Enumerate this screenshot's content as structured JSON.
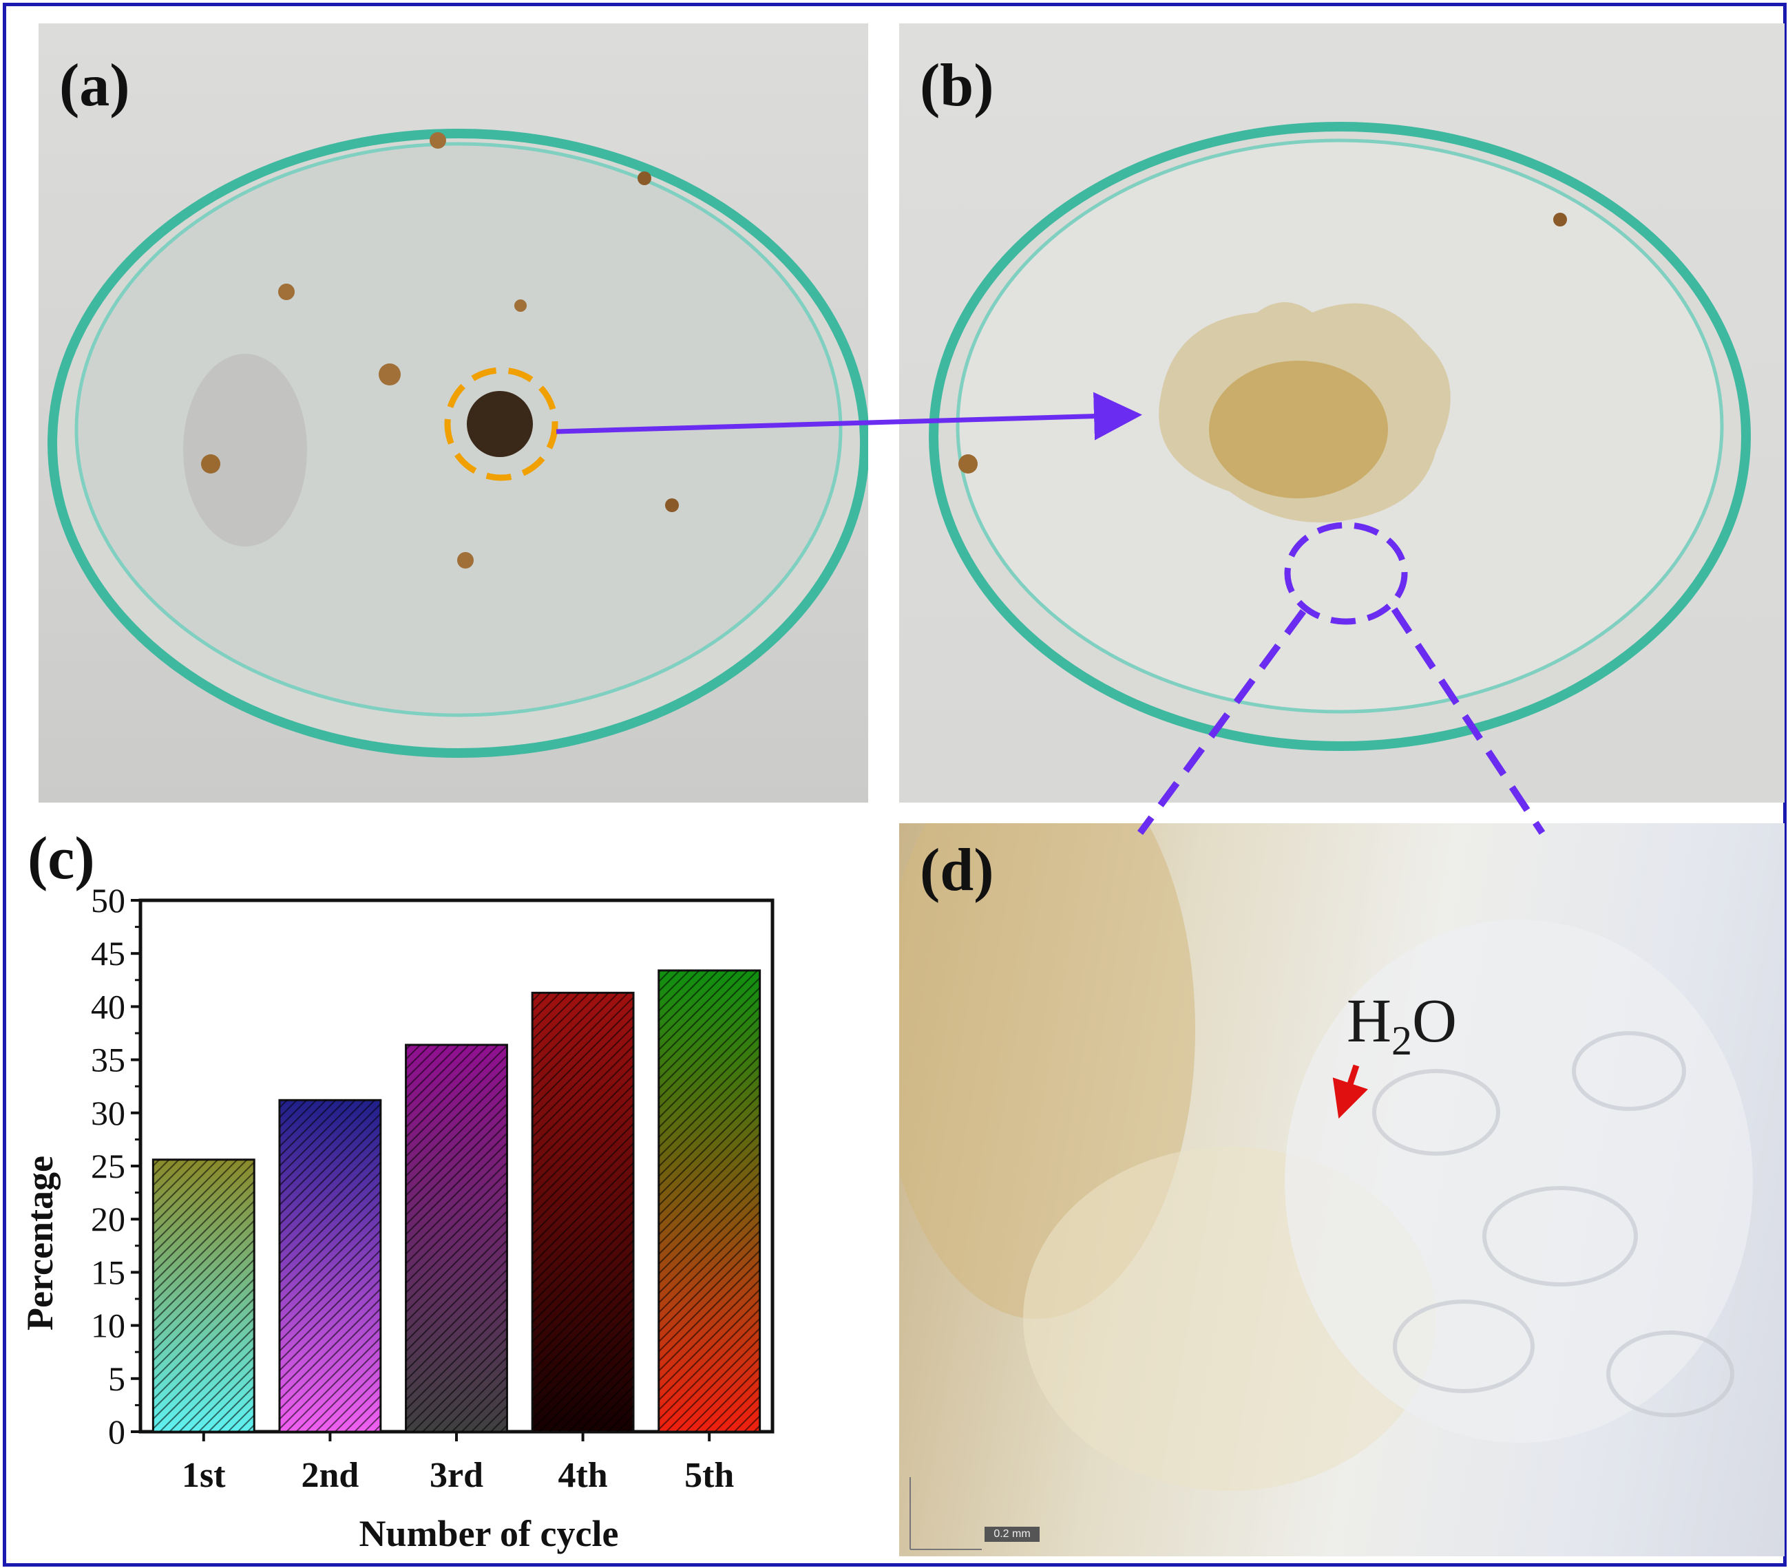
{
  "panels": {
    "a": {
      "label": "(a)"
    },
    "b": {
      "label": "(b)"
    },
    "c": {
      "label": "(c)"
    },
    "d": {
      "label": "(d)",
      "annotation": "H",
      "annotation_sub": "2",
      "annotation_tail": "O",
      "scale_bar": "0.2 mm"
    }
  },
  "colors": {
    "frame": "#1a1ab0",
    "connector": "#6a2cf0",
    "dish_rim": "#3fb8a0",
    "highlight_circle": "#f0a000",
    "arrow_red": "#e01010"
  },
  "chart_data": {
    "type": "bar",
    "categories": [
      "1st",
      "2nd",
      "3rd",
      "4th",
      "5th"
    ],
    "values": [
      25.6,
      31.2,
      36.4,
      41.3,
      43.4
    ],
    "ylim": [
      0,
      50
    ],
    "yticks": [
      "0",
      "5",
      "10",
      "15",
      "20",
      "25",
      "30",
      "35",
      "40",
      "45",
      "50"
    ],
    "xlabel": "Number of cycle",
    "ylabel": "Percentage",
    "bar_gradients": [
      [
        "#8a8a2a",
        "#5ef0f0"
      ],
      [
        "#20208a",
        "#f060f0"
      ],
      [
        "#901090",
        "#404040"
      ],
      [
        "#a01010",
        "#150000"
      ],
      [
        "#109010",
        "#f02010"
      ]
    ],
    "hatch": "diagonal"
  }
}
